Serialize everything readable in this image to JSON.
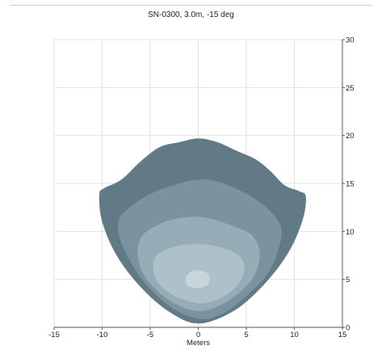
{
  "chart_data": {
    "type": "area",
    "title": "SN-0300, 3.0m, -15 deg",
    "xlabel": "Meters",
    "ylabel": "",
    "xlim": [
      -15,
      15
    ],
    "ylim": [
      0,
      30
    ],
    "x_ticks": [
      -15,
      -10,
      -5,
      0,
      5,
      10,
      15
    ],
    "y_ticks": [
      0,
      5,
      10,
      15,
      20,
      25,
      30
    ],
    "x_tick_labels": [
      "-15",
      "-10",
      "-5",
      "0",
      "5",
      "10",
      "15"
    ],
    "y_tick_labels": [
      "0",
      "5",
      "10",
      "15",
      "20",
      "25",
      "30"
    ],
    "grid": true,
    "y_axis_side": "right",
    "colors": {
      "grid": "#e3e3e3",
      "axis": "#555555",
      "levels": [
        "#617a86",
        "#7b939e",
        "#96acb6",
        "#aec1c9",
        "#c7d6dc"
      ]
    },
    "series": [
      {
        "points": [
          [
            0,
            0.4
          ],
          [
            -3,
            1.6
          ],
          [
            -6,
            4.2
          ],
          [
            -8.5,
            7.5
          ],
          [
            -10,
            11
          ],
          [
            -10.3,
            13.8
          ],
          [
            -9.8,
            14.5
          ],
          [
            -8,
            15.4
          ],
          [
            -6,
            17.3
          ],
          [
            -4,
            18.8
          ],
          [
            -2,
            19.3
          ],
          [
            0,
            19.7
          ],
          [
            2,
            19.3
          ],
          [
            4,
            18.4
          ],
          [
            6,
            17.5
          ],
          [
            7.5,
            16.3
          ],
          [
            9,
            14.8
          ],
          [
            10.5,
            14.2
          ],
          [
            11.2,
            13.6
          ],
          [
            10.8,
            11
          ],
          [
            9.2,
            7.5
          ],
          [
            6.5,
            4.1
          ],
          [
            3.5,
            1.6
          ]
        ]
      },
      {
        "points": [
          [
            0,
            0.9
          ],
          [
            -3,
            2.2
          ],
          [
            -6,
            5.2
          ],
          [
            -8,
            8.8
          ],
          [
            -8.3,
            11
          ],
          [
            -7.5,
            12.2
          ],
          [
            -5,
            13.9
          ],
          [
            -2,
            15
          ],
          [
            0,
            15.4
          ],
          [
            2,
            15.2
          ],
          [
            4.5,
            14.2
          ],
          [
            7,
            12.6
          ],
          [
            8.6,
            10.5
          ],
          [
            8.3,
            8
          ],
          [
            7,
            5.3
          ],
          [
            4,
            2.4
          ],
          [
            2,
            1.2
          ]
        ]
      },
      {
        "points": [
          [
            0,
            1.7
          ],
          [
            -3,
            2.8
          ],
          [
            -5.5,
            5.2
          ],
          [
            -6.3,
            7.6
          ],
          [
            -5.8,
            9.6
          ],
          [
            -3.5,
            11
          ],
          [
            -1,
            11.5
          ],
          [
            1,
            11.4
          ],
          [
            3.5,
            10.6
          ],
          [
            5.6,
            9.6
          ],
          [
            6.4,
            7.6
          ],
          [
            5.6,
            5
          ],
          [
            3,
            2.7
          ]
        ]
      },
      {
        "points": [
          [
            0,
            2.5
          ],
          [
            -2.7,
            3.4
          ],
          [
            -4.3,
            4.8
          ],
          [
            -4.7,
            6.4
          ],
          [
            -4.2,
            7.6
          ],
          [
            -2.5,
            8.4
          ],
          [
            0,
            8.7
          ],
          [
            2.5,
            8.3
          ],
          [
            4.3,
            7.4
          ],
          [
            4.8,
            6
          ],
          [
            4,
            4.3
          ],
          [
            2.2,
            3
          ]
        ]
      },
      {
        "points": [
          [
            0,
            4.1
          ],
          [
            -1,
            4.3
          ],
          [
            -1.3,
            4.8
          ],
          [
            -1.2,
            5.4
          ],
          [
            -0.5,
            5.9
          ],
          [
            0.3,
            5.9
          ],
          [
            1,
            5.6
          ],
          [
            1.2,
            5
          ],
          [
            0.9,
            4.4
          ]
        ]
      }
    ]
  }
}
